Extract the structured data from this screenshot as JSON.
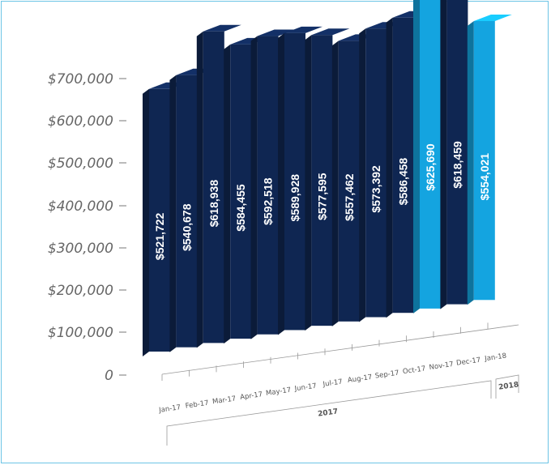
{
  "chart_data": {
    "type": "bar",
    "categories": [
      "Jan-17",
      "Feb-17",
      "Mar-17",
      "Apr-17",
      "May-17",
      "Jun-17",
      "Jul-17",
      "Aug-17",
      "Sep-17",
      "Oct-17",
      "Nov-17",
      "Dec-17",
      "Jan-18"
    ],
    "values": [
      521722,
      540678,
      618938,
      584455,
      592518,
      589928,
      577595,
      557462,
      573392,
      586458,
      625690,
      618459,
      554021
    ],
    "value_labels": [
      "$521,722",
      "$540,678",
      "$618,938",
      "$584,455",
      "$592,518",
      "$589,928",
      "$577,595",
      "$557,462",
      "$573,392",
      "$586,458",
      "$625,690",
      "$618,459",
      "$554,021"
    ],
    "highlighted_categories": [
      "Nov-17",
      "Jan-18"
    ],
    "y_ticks": [
      "0",
      "$100,000",
      "$200,000",
      "$300,000",
      "$400,000",
      "$500,000",
      "$600,000",
      "$700,000"
    ],
    "ylim": [
      0,
      700000
    ],
    "groups": [
      {
        "label": "2017",
        "span": [
          "Jan-17",
          "Dec-17"
        ]
      },
      {
        "label": "2018",
        "span": [
          "Jan-18",
          "Jan-18"
        ]
      }
    ],
    "title": "",
    "xlabel": "",
    "ylabel": "",
    "grid": false,
    "style": "3d-perspective",
    "colors": {
      "default": "#0f2652",
      "highlight": "#14a4e0",
      "text": "#ffffff",
      "axis": "#555555",
      "frame": "#6cc4e6"
    }
  }
}
